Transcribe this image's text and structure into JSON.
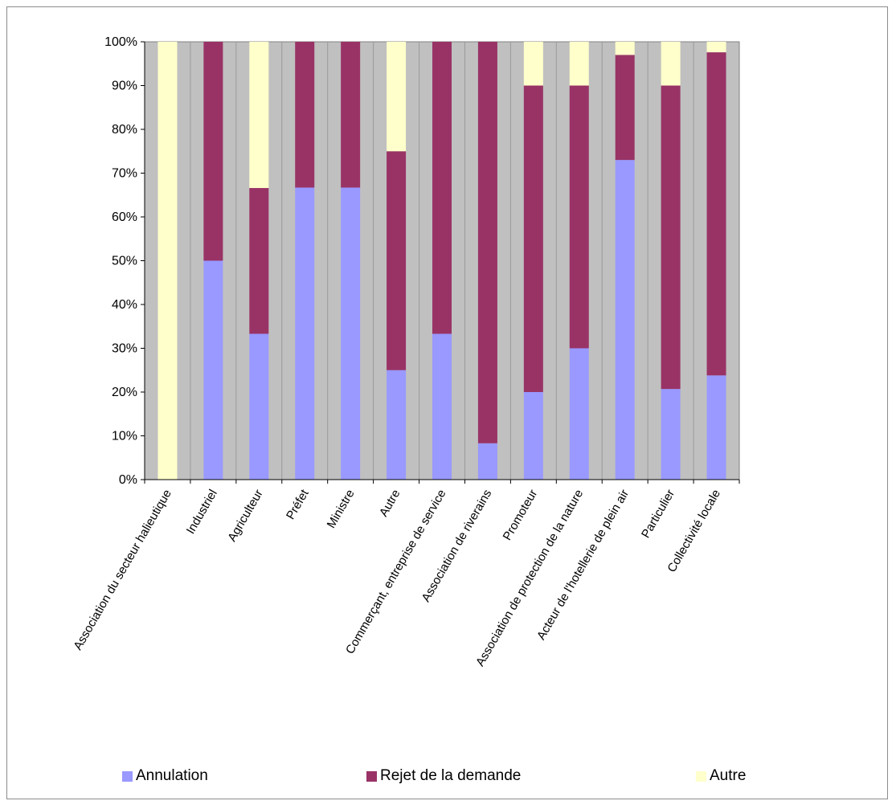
{
  "chart_data": {
    "type": "bar",
    "stacked": true,
    "title": "",
    "xlabel": "",
    "ylabel": "",
    "ylim": [
      0,
      100
    ],
    "yticks": [
      "0%",
      "10%",
      "20%",
      "30%",
      "40%",
      "50%",
      "60%",
      "70%",
      "80%",
      "90%",
      "100%"
    ],
    "grid": false,
    "legend_position": "bottom",
    "categories": [
      "Association du secteur halieutique",
      "Industriel",
      "Agriculteur",
      "Préfet",
      "Ministre",
      "Autre",
      "Commerçant, entreprise de service",
      "Association de riverains",
      "Promoteur",
      "Association de protection de la nature",
      "Acteur de l'hotellerie de plein air",
      "Particulier",
      "Collectivité locale"
    ],
    "series": [
      {
        "name": "Annulation",
        "color": "#9999ff",
        "values": [
          0,
          50,
          33.3,
          66.7,
          66.7,
          25,
          33.3,
          8.3,
          20,
          30,
          73,
          20.7,
          23.8
        ]
      },
      {
        "name": "Rejet de la demande",
        "color": "#993366",
        "values": [
          0,
          50,
          33.3,
          33.3,
          33.3,
          50,
          66.7,
          91.7,
          70,
          60,
          24,
          69.3,
          73.8
        ]
      },
      {
        "name": "Autre",
        "color": "#ffffcc",
        "values": [
          100,
          0,
          33.4,
          0,
          0,
          25,
          0,
          0,
          10,
          10,
          3,
          10,
          2.4
        ]
      }
    ],
    "plot_background": "#c0c0c0"
  }
}
